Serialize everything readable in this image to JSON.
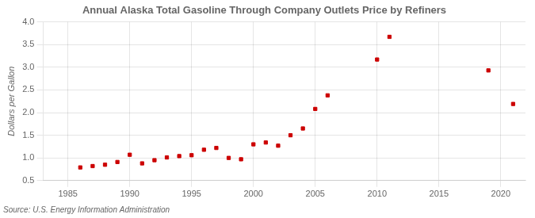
{
  "chart_data": {
    "type": "scatter",
    "title": "Annual Alaska Total Gasoline Through Company Outlets Price by Refiners",
    "y_label": "Dollars per Gallon",
    "annotation": "Source: U.S. Energy Information Administration",
    "x": [
      1986,
      1987,
      1988,
      1989,
      1990,
      1991,
      1992,
      1993,
      1994,
      1995,
      1996,
      1997,
      1998,
      1999,
      2000,
      2001,
      2002,
      2003,
      2004,
      2005,
      2006,
      2010,
      2011,
      2019,
      2021
    ],
    "values": [
      0.79,
      0.82,
      0.85,
      0.91,
      1.07,
      0.88,
      0.95,
      1.01,
      1.04,
      1.06,
      1.18,
      1.22,
      1.0,
      0.97,
      1.3,
      1.34,
      1.27,
      1.5,
      1.65,
      2.08,
      2.38,
      3.17,
      3.67,
      2.93,
      2.19
    ],
    "color": "#cc0000",
    "marker": "square",
    "xlim": [
      1983,
      2022
    ],
    "ylim": [
      0.5,
      4.0
    ],
    "xticks": [
      1985,
      1990,
      1995,
      2000,
      2005,
      2010,
      2015,
      2020
    ],
    "yticks": [
      0.5,
      {
        "value": 1.0,
        "label": "1.0"
      },
      1.5,
      {
        "value": 2.0,
        "label": "2.0"
      },
      2.5,
      {
        "value": 3.0,
        "label": "3.0"
      },
      3.5,
      {
        "value": 4.0,
        "label": "4.0"
      }
    ],
    "grid": true
  }
}
